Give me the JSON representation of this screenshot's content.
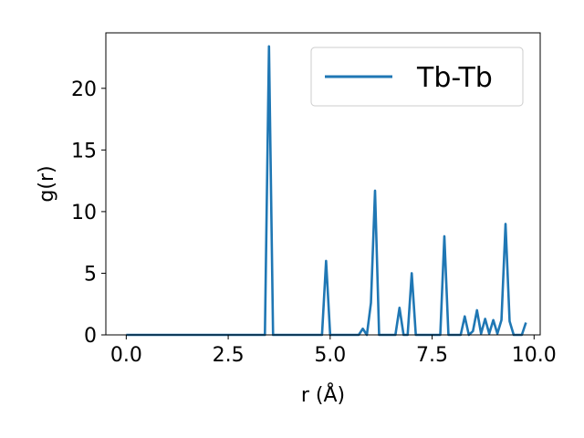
{
  "chart_data": {
    "type": "line",
    "xlabel": "r (Å)",
    "ylabel": "g(r)",
    "xlim": [
      -0.5,
      10.15
    ],
    "ylim": [
      0,
      24.5
    ],
    "xticks": [
      0.0,
      2.5,
      5.0,
      7.5,
      10.0
    ],
    "xtick_labels": [
      "0.0",
      "2.5",
      "5.0",
      "7.5",
      "10.0"
    ],
    "yticks": [
      0,
      5,
      10,
      15,
      20
    ],
    "ytick_labels": [
      "0",
      "5",
      "10",
      "15",
      "20"
    ],
    "grid": false,
    "legend_position": "top-right",
    "series": [
      {
        "name": "Tb-Tb",
        "color": "#1f77b4",
        "x": [
          0.0,
          3.4,
          3.5,
          3.6,
          4.8,
          4.9,
          5.0,
          5.7,
          5.8,
          5.9,
          6.0,
          6.1,
          6.2,
          6.6,
          6.7,
          6.8,
          6.9,
          7.0,
          7.1,
          7.7,
          7.8,
          7.9,
          8.2,
          8.3,
          8.4,
          8.5,
          8.6,
          8.7,
          8.8,
          8.9,
          9.0,
          9.1,
          9.2,
          9.3,
          9.4,
          9.5,
          9.6,
          9.7,
          9.8
        ],
        "y": [
          0,
          0,
          23.4,
          0,
          0,
          6.0,
          0,
          0,
          0.5,
          0,
          2.6,
          11.7,
          0,
          0,
          2.2,
          0,
          0,
          5.0,
          0,
          0,
          8.0,
          0,
          0,
          1.5,
          0,
          0.3,
          2.0,
          0.1,
          1.3,
          0.1,
          1.2,
          0.1,
          1.2,
          9.0,
          1.1,
          0,
          0,
          0,
          1.0
        ]
      }
    ]
  }
}
